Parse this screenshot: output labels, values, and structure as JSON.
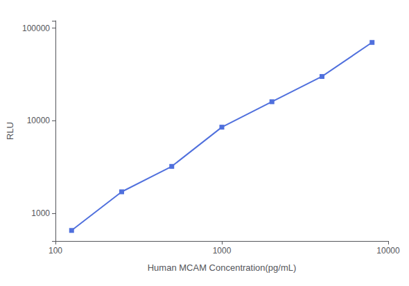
{
  "chart_data": {
    "type": "line",
    "x": [
      125,
      250,
      500,
      1000,
      2000,
      4000,
      8000
    ],
    "values": [
      650,
      1700,
      3200,
      8500,
      16000,
      30000,
      70000
    ],
    "xlabel": "Human MCAM Concentration(pg/mL)",
    "ylabel": "RLU",
    "xlim": [
      100,
      10000
    ],
    "ylim": [
      500,
      120000
    ],
    "xticks": [
      100,
      1000,
      10000
    ],
    "yticks": [
      1000,
      10000,
      100000
    ],
    "log": true,
    "grid": false,
    "marker": "square"
  }
}
